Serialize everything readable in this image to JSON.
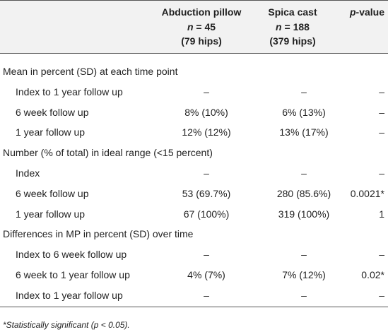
{
  "header": {
    "columns": [
      {
        "title": "Abduction pillow",
        "n_label": "n",
        "n_value": " = 45",
        "hips": "(79 hips)"
      },
      {
        "title": "Spica cast",
        "n_label": "n",
        "n_value": " = 188",
        "hips": "(379 hips)"
      },
      {
        "title_italic": "p",
        "title": "-value"
      }
    ]
  },
  "sections": [
    {
      "title": "Mean in percent (SD) at each time point",
      "rows": [
        [
          "Index to 1 year follow up",
          "–",
          "–",
          "–"
        ],
        [
          "6 week follow up",
          "8% (10%)",
          "6% (13%)",
          "–"
        ],
        [
          "1 year follow up",
          "12% (12%)",
          "13% (17%)",
          "–"
        ]
      ]
    },
    {
      "title": "Number (% of total) in ideal range (<15 percent)",
      "rows": [
        [
          "Index",
          "–",
          "–",
          "–"
        ],
        [
          "6 week follow up",
          "53 (69.7%)",
          "280 (85.6%)",
          "0.0021*"
        ],
        [
          "1 year follow up",
          "67 (100%)",
          "319 (100%)",
          "1"
        ]
      ]
    },
    {
      "title": "Differences in MP in percent (SD) over time",
      "rows": [
        [
          "Index to 6 week follow up",
          "–",
          "–",
          "–"
        ],
        [
          "6 week to 1 year follow up",
          "4% (7%)",
          "7% (12%)",
          "0.02*"
        ],
        [
          "Index to 1 year follow up",
          "–",
          "–",
          "–"
        ]
      ]
    }
  ],
  "footnote": "*Statistically significant (p < 0.05)."
}
